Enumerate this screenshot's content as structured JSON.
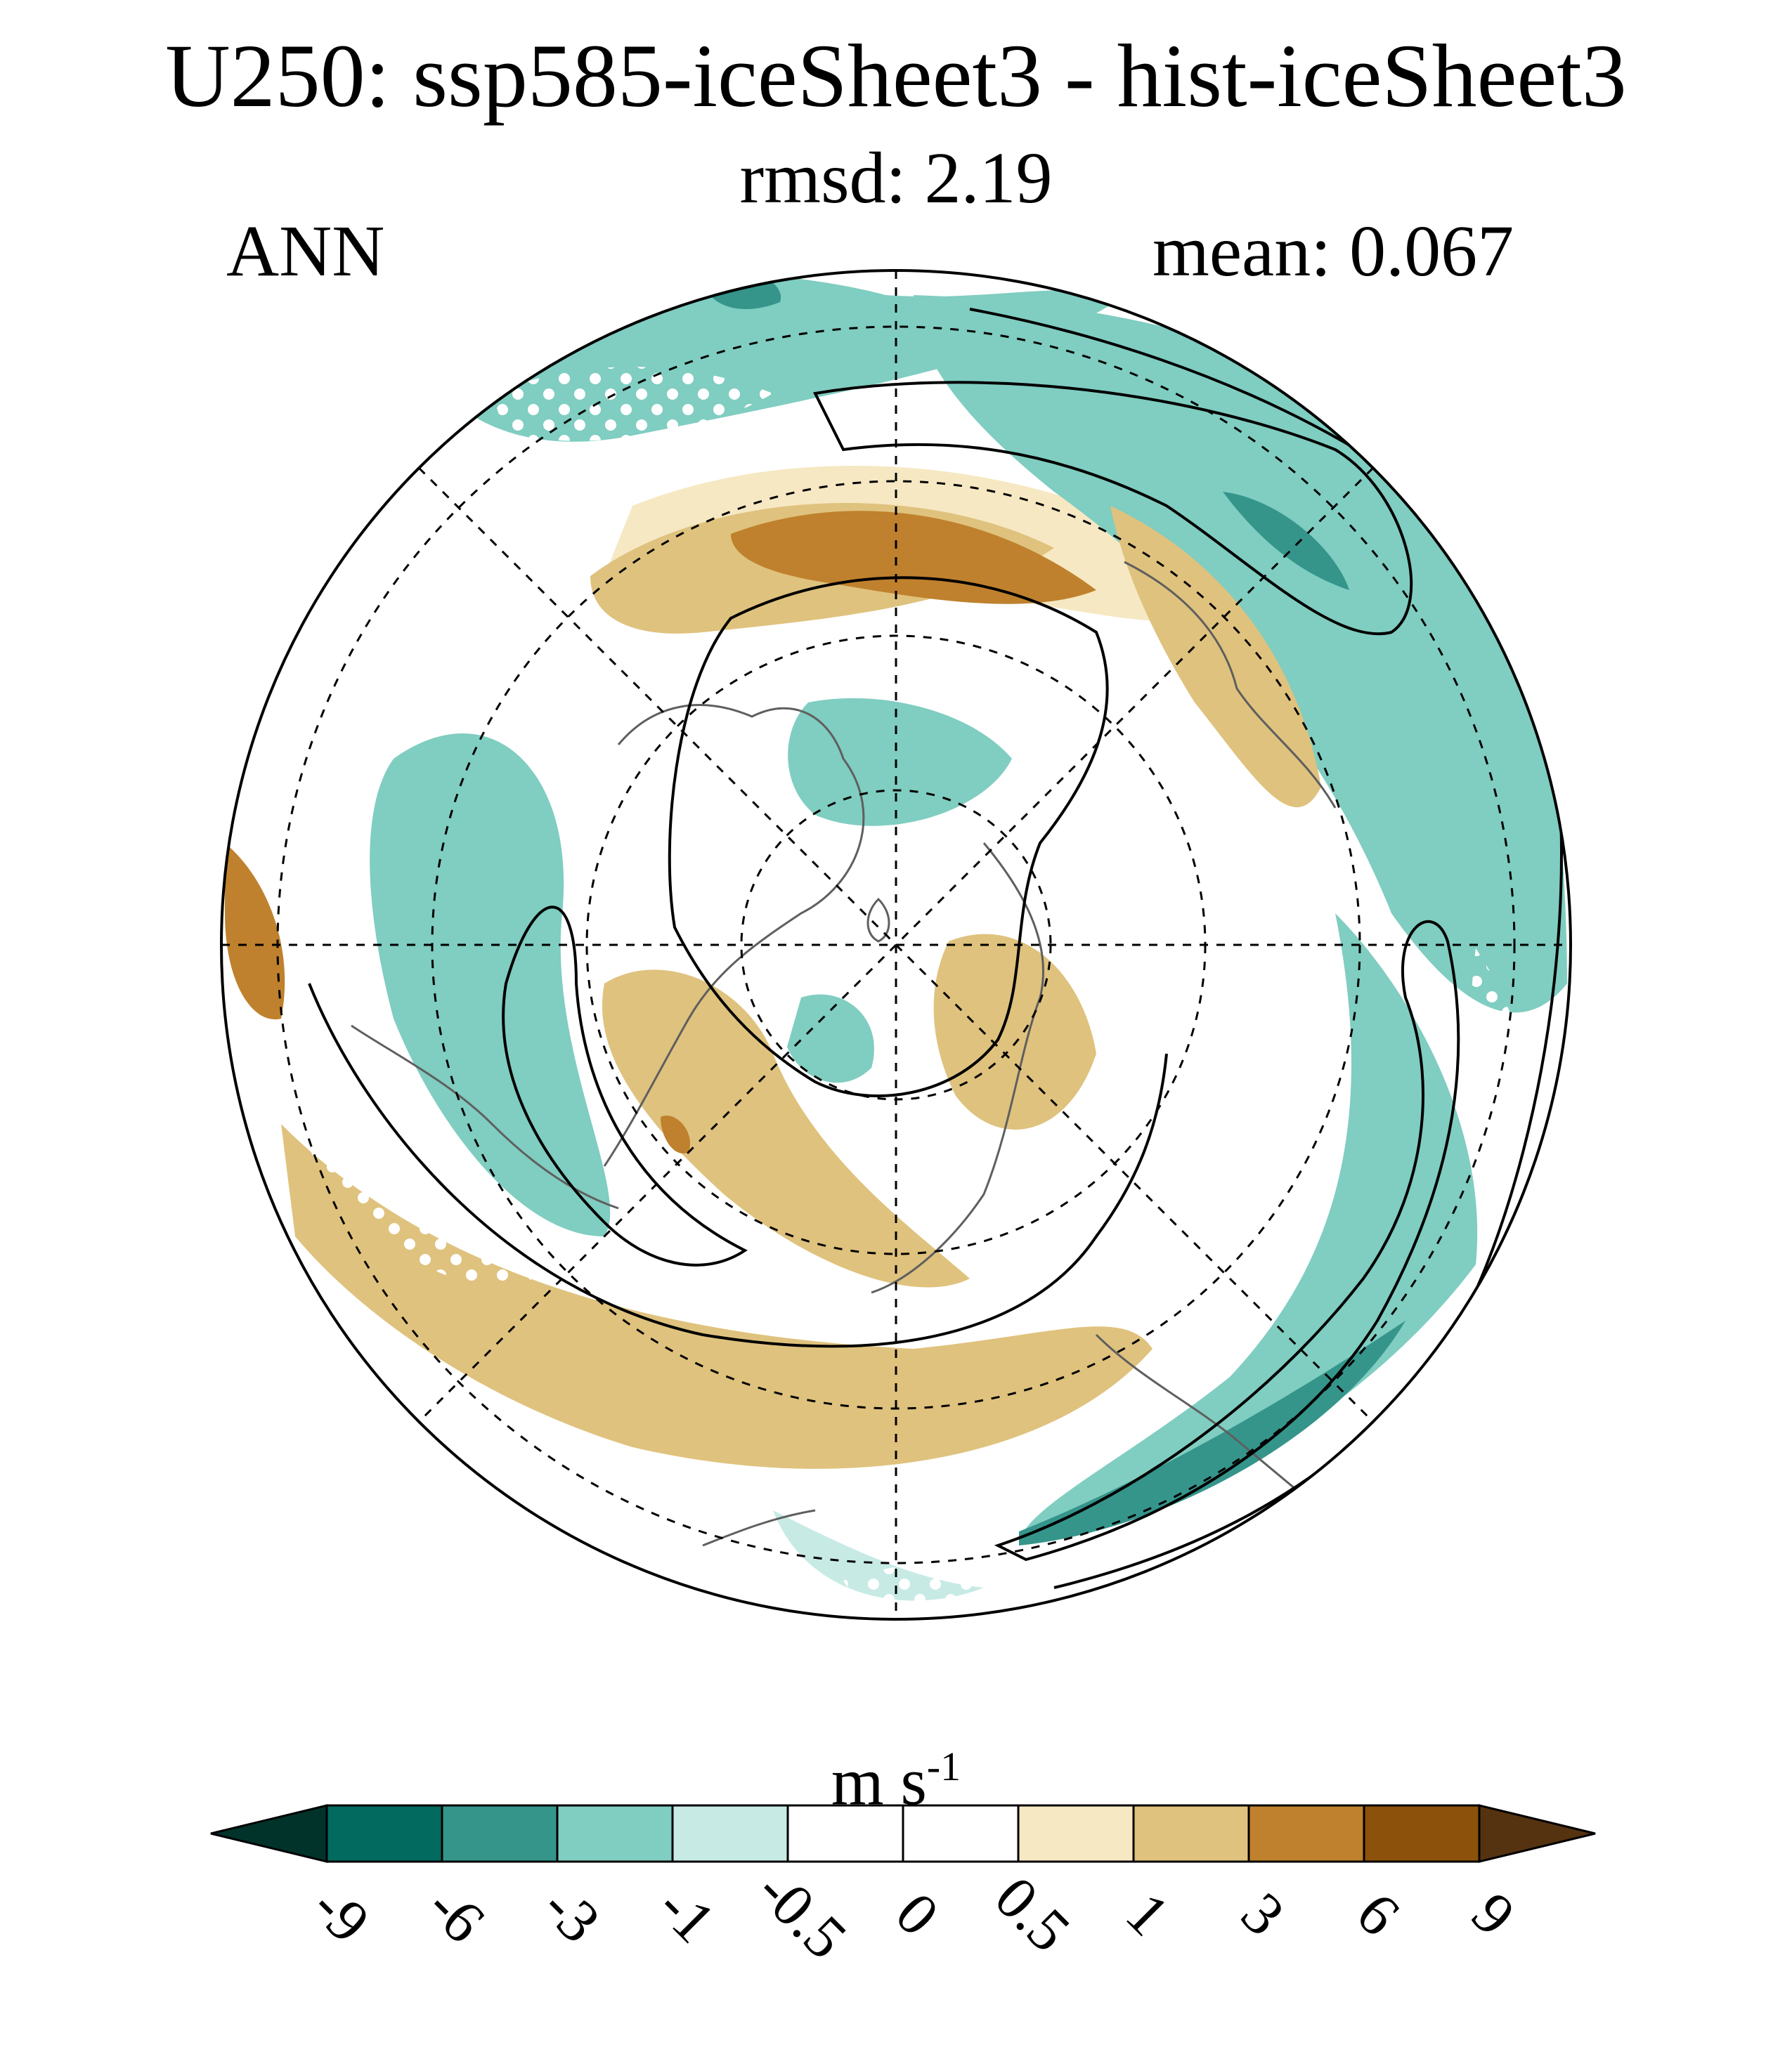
{
  "chart_data": {
    "type": "polar-stereographic-contour-map",
    "title": "U250: ssp585-iceSheet3 - hist-iceSheet3",
    "subtitle": "rmsd: 2.19",
    "left_label": "ANN",
    "right_label": "mean: 0.067",
    "projection": "Northern Hemisphere polar stereographic",
    "units_main": "m s",
    "units_exp": "-1",
    "colorbar": {
      "levels": [
        "-9",
        "-6",
        "-3",
        "-1",
        "-0.5",
        "0",
        "0.5",
        "1",
        "3",
        "6",
        "9"
      ],
      "colors": [
        "#01332b",
        "#036a5f",
        "#35958b",
        "#80cdc1",
        "#c7eae5",
        "#ffffff",
        "#ffffff",
        "#f6e8c3",
        "#dfc27d",
        "#bf812d",
        "#8c510a",
        "#553210"
      ],
      "extend": "both"
    },
    "overlays": {
      "contours": "climatological zonal wind (black lines)",
      "stippling": "white dots mark significant differences"
    }
  }
}
